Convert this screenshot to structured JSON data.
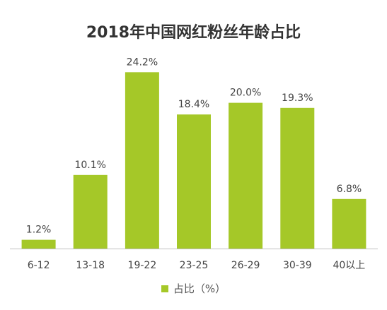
{
  "chart_data": {
    "type": "bar",
    "title": "2018年中国网红粉丝年龄占比",
    "xlabel": "",
    "ylabel": "",
    "categories": [
      "6-12",
      "13-18",
      "19-22",
      "23-25",
      "26-29",
      "30-39",
      "40以上"
    ],
    "series": [
      {
        "name": "占比（%）",
        "values": [
          1.2,
          10.1,
          24.2,
          18.4,
          20.0,
          19.3,
          6.8
        ]
      }
    ],
    "data_labels": [
      "1.2%",
      "10.1%",
      "24.2%",
      "18.4%",
      "20.0%",
      "19.3%",
      "6.8%"
    ],
    "ylim": [
      0,
      25
    ],
    "grid": false,
    "legend_position": "bottom",
    "colors": {
      "bar": "#a5c828",
      "axis": "#bfbfbf",
      "text": "#444444"
    }
  }
}
